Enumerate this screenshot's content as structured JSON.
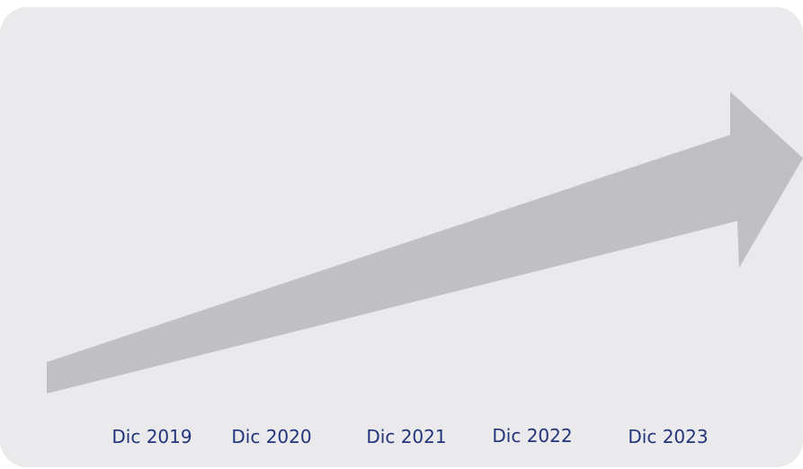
{
  "timeline": {
    "labels": [
      "Dic 2019",
      "Dic 2020",
      "Dic 2021",
      "Dic 2022",
      "Dic 2023"
    ]
  }
}
